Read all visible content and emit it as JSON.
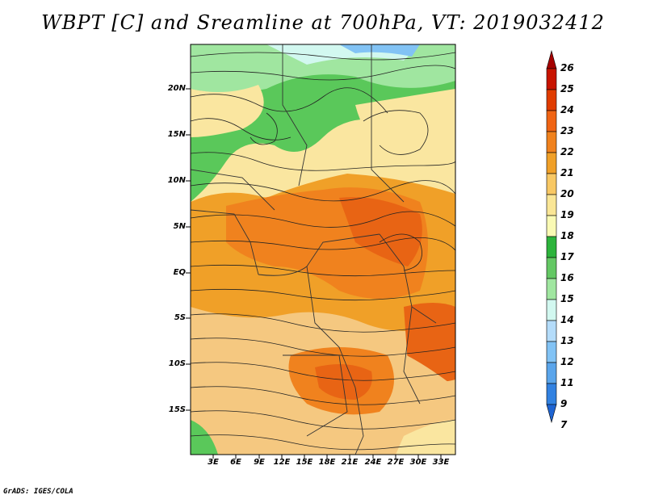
{
  "title": "WBPT [C] and Sreamline at 700hPa, VT: 2019032412",
  "credit": "GrADS: IGES/COLA",
  "map": {
    "lat_labels": [
      "20N",
      "15N",
      "10N",
      "5N",
      "EQ",
      "5S",
      "10S",
      "15S"
    ],
    "lon_labels": [
      "3E",
      "6E",
      "9E",
      "12E",
      "15E",
      "18E",
      "21E",
      "24E",
      "27E",
      "30E",
      "33E"
    ]
  },
  "colorbar": {
    "labels": [
      "26",
      "25",
      "24",
      "23",
      "22",
      "21",
      "20",
      "19",
      "18",
      "17",
      "16",
      "15",
      "14",
      "13",
      "12",
      "11",
      "9",
      "7"
    ],
    "colors": [
      "#a50000",
      "#c81400",
      "#e03c00",
      "#f06414",
      "#f0821e",
      "#f0a028",
      "#f8c864",
      "#fae696",
      "#fafab4",
      "#2db43c",
      "#64c864",
      "#a0e6a0",
      "#d2f8f0",
      "#b4dcfa",
      "#82c3f5",
      "#5aa5eb",
      "#3282e1",
      "#1e64d2"
    ]
  }
}
